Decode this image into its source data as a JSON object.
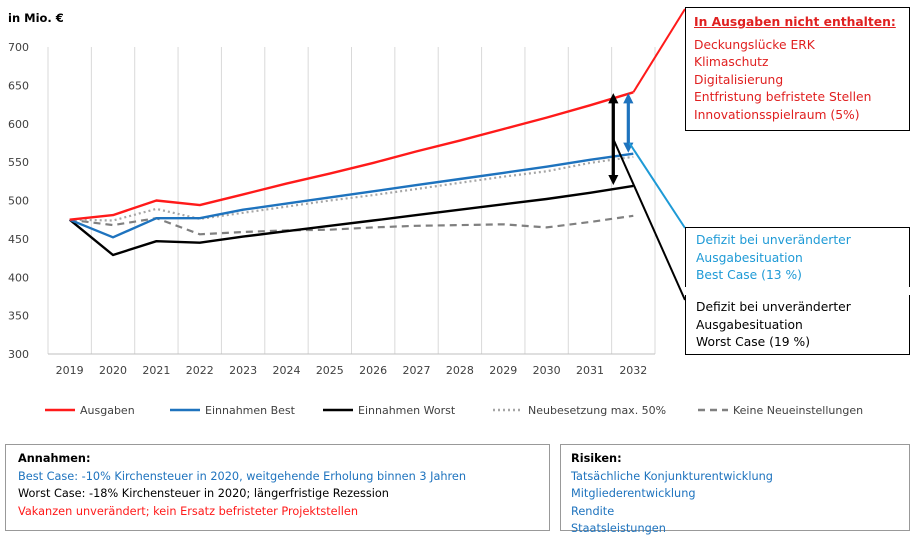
{
  "chart_data": {
    "type": "line",
    "ylabel": "in Mio. €",
    "ylim": [
      300,
      700
    ],
    "yticks": [
      300,
      350,
      400,
      450,
      500,
      550,
      600,
      650,
      700
    ],
    "x": [
      "2019",
      "2020",
      "2021",
      "2022",
      "2023",
      "2024",
      "2025",
      "2026",
      "2027",
      "2028",
      "2029",
      "2030",
      "2031",
      "2032"
    ],
    "grid": "vertical",
    "legend": "bottom",
    "series": [
      {
        "name": "Ausgaben",
        "color": "#ff1a1a",
        "style": "solid",
        "values": [
          475,
          481,
          500,
          494,
          508,
          522,
          535,
          549,
          564,
          578,
          593,
          608,
          624,
          641
        ]
      },
      {
        "name": "Einnahmen Best",
        "color": "#1e73be",
        "style": "solid",
        "values": [
          475,
          452,
          477,
          477,
          488,
          496,
          504,
          512,
          520,
          528,
          536,
          544,
          553,
          561
        ]
      },
      {
        "name": "Einnahmen Worst",
        "color": "#000000",
        "style": "solid",
        "values": [
          475,
          429,
          447,
          445,
          453,
          460,
          467,
          474,
          481,
          488,
          495,
          502,
          510,
          519
        ]
      },
      {
        "name": "Neubesetzung max. 50%",
        "color": "#a6a6a6",
        "style": "dotted",
        "values": [
          475,
          474,
          489,
          476,
          484,
          492,
          500,
          507,
          515,
          523,
          531,
          538,
          549,
          557
        ]
      },
      {
        "name": "Keine Neueinstellungen",
        "color": "#808080",
        "style": "dashed",
        "values": [
          475,
          468,
          477,
          456,
          459,
          461,
          462,
          465,
          467,
          468,
          469,
          465,
          472,
          480
        ]
      }
    ],
    "annotations": [
      {
        "type": "arrow",
        "color": "#1e73be",
        "from": 561,
        "to": 641
      },
      {
        "type": "arrow",
        "color": "#000000",
        "from": 519,
        "to": 641
      }
    ]
  },
  "callouts": {
    "expenses": {
      "title": "In Ausgaben nicht enthalten:",
      "items": [
        "Deckungslücke ERK",
        "Klimaschutz",
        "Digitalisierung",
        "Entfristung befristete Stellen",
        "Innovationsspielraum (5%)"
      ]
    },
    "best": {
      "lines": [
        "Defizit bei unveränderter",
        "Ausgabesituation",
        "Best Case (13 %)"
      ]
    },
    "worst": {
      "lines": [
        "Defizit bei unveränderter",
        "Ausgabesituation",
        "Worst Case (19 %)"
      ]
    }
  },
  "assumptions": {
    "title": "Annahmen:",
    "lines": [
      {
        "text": "Best Case: -10% Kirchensteuer in 2020, weitgehende Erholung binnen 3 Jahren",
        "color": "#1e73be"
      },
      {
        "text": "Worst Case: -18% Kirchensteuer in 2020; längerfristige Rezession",
        "color": "#000000"
      },
      {
        "text": "Vakanzen unverändert; kein Ersatz befristeter Projektstellen",
        "color": "#ff1a1a"
      }
    ]
  },
  "risks": {
    "title": "Risiken:",
    "items": [
      "Tatsächliche Konjunkturentwicklung",
      "Mitgliederentwicklung",
      "Rendite",
      "Staatsleistungen"
    ]
  }
}
